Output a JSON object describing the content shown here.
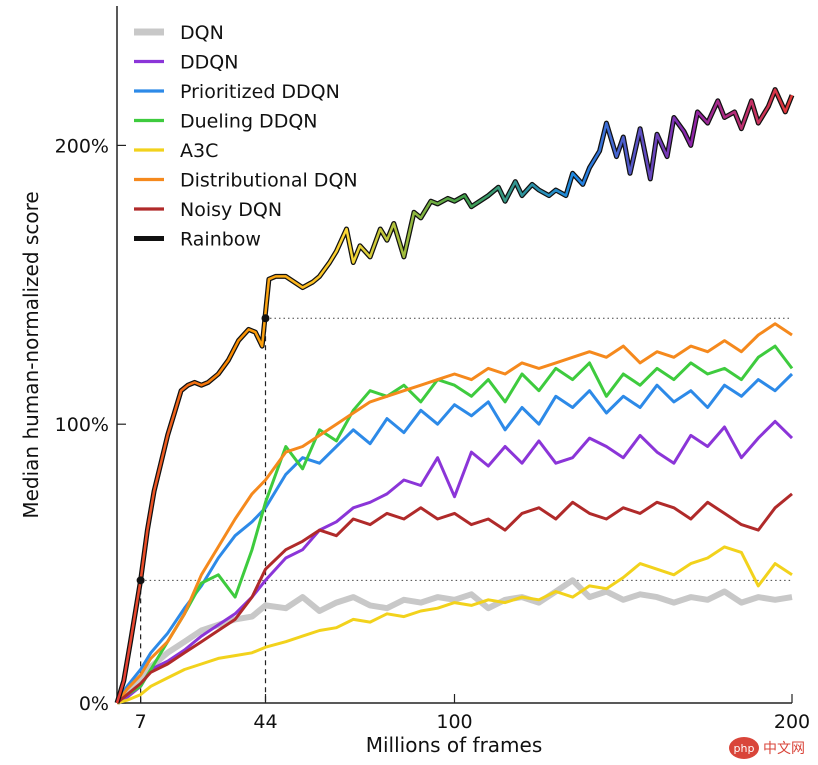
{
  "chart_data": {
    "type": "line",
    "xlabel": "Millions of frames",
    "ylabel": "Median human-normalized score",
    "xlim": [
      0,
      200
    ],
    "ylim": [
      0,
      250
    ],
    "x_ticks": [
      7,
      44,
      100,
      200
    ],
    "y_ticks": [
      {
        "value": 0,
        "label": "0%"
      },
      {
        "value": 100,
        "label": "100%"
      },
      {
        "value": 200,
        "label": "200%"
      }
    ],
    "legend_position": "top-left",
    "grid": false,
    "reference_lines": {
      "dqn_best": 44,
      "rainbow_best_baseline_level": 138,
      "x_markers": [
        7,
        44
      ]
    },
    "series": [
      {
        "name": "DQN",
        "color": "#c8c8c8",
        "width": 6,
        "x": [
          0,
          3,
          7,
          10,
          15,
          20,
          25,
          30,
          35,
          40,
          44,
          50,
          55,
          60,
          65,
          70,
          75,
          80,
          85,
          90,
          95,
          100,
          105,
          110,
          115,
          120,
          125,
          130,
          135,
          140,
          145,
          150,
          155,
          160,
          165,
          170,
          175,
          180,
          185,
          190,
          195,
          200
        ],
        "y": [
          0,
          3,
          8,
          13,
          18,
          22,
          26,
          28,
          30,
          31,
          35,
          34,
          38,
          33,
          36,
          38,
          35,
          34,
          37,
          36,
          38,
          37,
          39,
          34,
          37,
          38,
          36,
          40,
          44,
          38,
          40,
          37,
          39,
          38,
          36,
          38,
          37,
          40,
          36,
          38,
          37,
          38
        ]
      },
      {
        "name": "DDQN",
        "color": "#8b35d8",
        "width": 3,
        "x": [
          0,
          3,
          7,
          10,
          15,
          20,
          25,
          30,
          35,
          40,
          44,
          50,
          55,
          60,
          65,
          70,
          75,
          80,
          85,
          90,
          95,
          100,
          105,
          110,
          115,
          120,
          125,
          130,
          135,
          140,
          145,
          150,
          155,
          160,
          165,
          170,
          175,
          180,
          185,
          190,
          195,
          200
        ],
        "y": [
          0,
          2,
          6,
          12,
          15,
          19,
          24,
          28,
          32,
          38,
          44,
          52,
          55,
          62,
          65,
          70,
          72,
          75,
          80,
          78,
          88,
          74,
          90,
          85,
          92,
          86,
          94,
          86,
          88,
          95,
          92,
          88,
          96,
          90,
          86,
          96,
          92,
          99,
          88,
          95,
          101,
          95
        ]
      },
      {
        "name": "Prioritized DDQN",
        "color": "#2d8ae8",
        "width": 3,
        "x": [
          0,
          3,
          7,
          10,
          15,
          20,
          25,
          30,
          35,
          40,
          44,
          50,
          55,
          60,
          65,
          70,
          75,
          80,
          85,
          90,
          95,
          100,
          105,
          110,
          115,
          120,
          125,
          130,
          135,
          140,
          145,
          150,
          155,
          160,
          165,
          170,
          175,
          180,
          185,
          190,
          195,
          200
        ],
        "y": [
          0,
          6,
          12,
          18,
          25,
          34,
          42,
          52,
          60,
          65,
          70,
          82,
          88,
          86,
          92,
          98,
          93,
          102,
          97,
          105,
          100,
          107,
          103,
          108,
          98,
          106,
          100,
          110,
          106,
          112,
          104,
          110,
          106,
          114,
          108,
          112,
          106,
          114,
          110,
          116,
          112,
          118
        ]
      },
      {
        "name": "Dueling DDQN",
        "color": "#3ecb3e",
        "width": 3,
        "x": [
          0,
          3,
          7,
          10,
          15,
          20,
          25,
          30,
          35,
          40,
          44,
          50,
          55,
          60,
          65,
          70,
          75,
          80,
          85,
          90,
          95,
          100,
          105,
          110,
          115,
          120,
          125,
          130,
          135,
          140,
          145,
          150,
          155,
          160,
          165,
          170,
          175,
          180,
          185,
          190,
          195,
          200
        ],
        "y": [
          0,
          3,
          6,
          12,
          22,
          32,
          43,
          46,
          38,
          55,
          72,
          92,
          84,
          98,
          94,
          105,
          112,
          110,
          114,
          108,
          116,
          114,
          110,
          116,
          108,
          118,
          112,
          120,
          116,
          122,
          110,
          118,
          114,
          120,
          116,
          122,
          118,
          120,
          116,
          124,
          128,
          120
        ]
      },
      {
        "name": "A3C",
        "color": "#f2d21c",
        "width": 3,
        "x": [
          0,
          3,
          7,
          10,
          15,
          20,
          25,
          30,
          35,
          40,
          44,
          50,
          55,
          60,
          65,
          70,
          75,
          80,
          85,
          90,
          95,
          100,
          105,
          110,
          115,
          120,
          125,
          130,
          135,
          140,
          145,
          150,
          155,
          160,
          165,
          170,
          175,
          180,
          185,
          190,
          195,
          200
        ],
        "y": [
          0,
          1,
          3,
          6,
          9,
          12,
          14,
          16,
          17,
          18,
          20,
          22,
          24,
          26,
          27,
          30,
          29,
          32,
          31,
          33,
          34,
          36,
          35,
          37,
          36,
          38,
          37,
          40,
          38,
          42,
          41,
          45,
          50,
          48,
          46,
          50,
          52,
          56,
          54,
          42,
          50,
          46
        ]
      },
      {
        "name": "Distributional DQN",
        "color": "#f5891d",
        "width": 3,
        "x": [
          0,
          3,
          7,
          10,
          15,
          20,
          25,
          30,
          35,
          40,
          44,
          50,
          55,
          60,
          65,
          70,
          75,
          80,
          85,
          90,
          95,
          100,
          105,
          110,
          115,
          120,
          125,
          130,
          135,
          140,
          145,
          150,
          155,
          160,
          165,
          170,
          175,
          180,
          185,
          190,
          195,
          200
        ],
        "y": [
          0,
          5,
          10,
          16,
          22,
          32,
          46,
          56,
          66,
          75,
          80,
          90,
          92,
          96,
          100,
          104,
          108,
          110,
          112,
          114,
          116,
          118,
          116,
          120,
          118,
          122,
          120,
          122,
          124,
          126,
          124,
          128,
          122,
          126,
          124,
          128,
          126,
          130,
          126,
          132,
          136,
          132
        ]
      },
      {
        "name": "Noisy DQN",
        "color": "#b02a2a",
        "width": 3,
        "x": [
          0,
          3,
          7,
          10,
          15,
          20,
          25,
          30,
          35,
          40,
          44,
          50,
          55,
          60,
          65,
          70,
          75,
          80,
          85,
          90,
          95,
          100,
          105,
          110,
          115,
          120,
          125,
          130,
          135,
          140,
          145,
          150,
          155,
          160,
          165,
          170,
          175,
          180,
          185,
          190,
          195,
          200
        ],
        "y": [
          0,
          3,
          7,
          11,
          14,
          18,
          22,
          26,
          30,
          38,
          48,
          55,
          58,
          62,
          60,
          66,
          64,
          68,
          66,
          70,
          66,
          68,
          64,
          66,
          62,
          68,
          70,
          66,
          72,
          68,
          66,
          70,
          68,
          72,
          70,
          66,
          72,
          68,
          64,
          62,
          70,
          75
        ]
      },
      {
        "name": "Rainbow",
        "color": "#222222",
        "width": 3,
        "rainbow": true,
        "x": [
          0,
          2,
          4,
          7,
          9,
          11,
          13,
          15,
          17,
          19,
          21,
          23,
          25,
          27,
          30,
          33,
          36,
          39,
          41,
          43,
          44,
          45,
          47,
          50,
          55,
          58,
          60,
          63,
          65,
          68,
          70,
          72,
          75,
          78,
          80,
          82,
          85,
          88,
          90,
          93,
          95,
          98,
          100,
          103,
          105,
          110,
          113,
          115,
          118,
          120,
          123,
          125,
          128,
          130,
          133,
          135,
          138,
          140,
          143,
          145,
          148,
          150,
          152,
          155,
          158,
          160,
          163,
          165,
          168,
          170,
          172,
          175,
          178,
          180,
          183,
          185,
          188,
          190,
          193,
          195,
          198,
          200
        ],
        "y": [
          0,
          8,
          22,
          44,
          62,
          76,
          86,
          96,
          104,
          112,
          114,
          115,
          114,
          115,
          118,
          123,
          130,
          134,
          133,
          128,
          140,
          152,
          153,
          153,
          149,
          151,
          153,
          158,
          162,
          170,
          158,
          164,
          160,
          170,
          166,
          172,
          160,
          176,
          174,
          180,
          179,
          181,
          180,
          182,
          178,
          182,
          185,
          180,
          187,
          182,
          186,
          184,
          182,
          184,
          182,
          190,
          186,
          192,
          198,
          208,
          196,
          203,
          190,
          206,
          188,
          204,
          196,
          210,
          205,
          200,
          212,
          208,
          216,
          210,
          212,
          206,
          216,
          208,
          214,
          220,
          212,
          218
        ]
      }
    ]
  },
  "watermark": {
    "text": "php 中文网",
    "color": "#d9453a"
  }
}
